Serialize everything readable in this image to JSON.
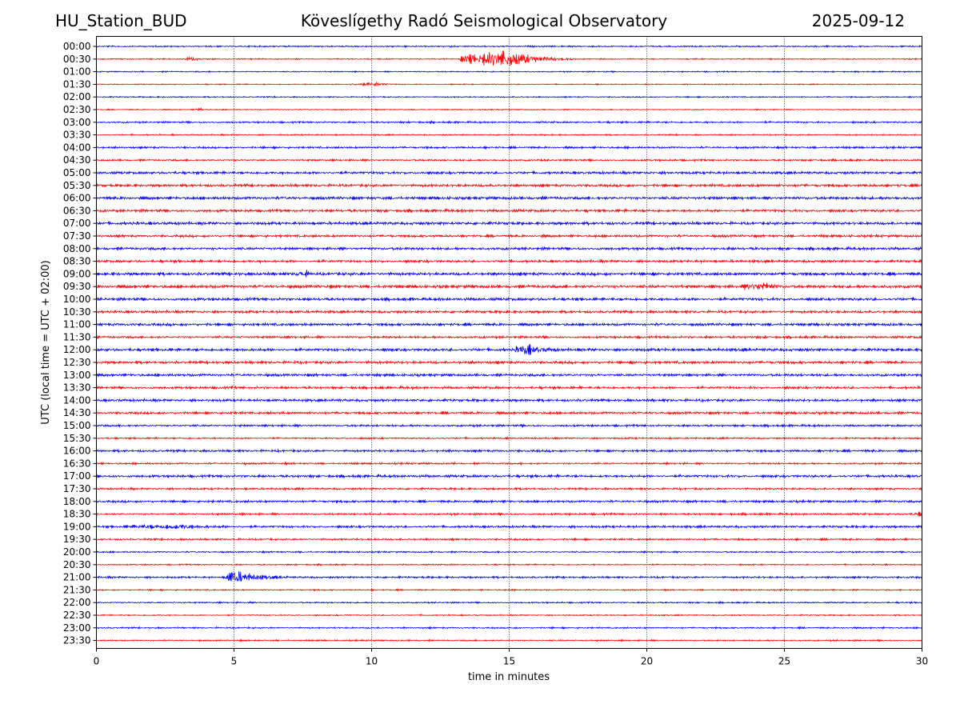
{
  "header": {
    "station": "HU_Station_BUD",
    "observatory": "Köveslígethy Radó Seismological Observatory",
    "date": "2025-09-12"
  },
  "chart_data": {
    "type": "line",
    "title": "Köveslígethy Radó Seismological Observatory",
    "xlabel": "time in minutes",
    "ylabel": "UTC (local time = UTC + 02:00)",
    "xlim": [
      0,
      30
    ],
    "x_ticks": [
      "0",
      "5",
      "10",
      "15",
      "20",
      "25",
      "30"
    ],
    "x_tick_values": [
      0,
      5,
      10,
      15,
      20,
      25,
      30
    ],
    "vertical_grid": "dotted at each x tick",
    "trace_colors": [
      "#0000ff",
      "#ff0000"
    ],
    "rows": [
      "00:00",
      "00:30",
      "01:00",
      "01:30",
      "02:00",
      "02:30",
      "03:00",
      "03:30",
      "04:00",
      "04:30",
      "05:00",
      "05:30",
      "06:00",
      "06:30",
      "07:00",
      "07:30",
      "08:00",
      "08:30",
      "09:00",
      "09:30",
      "10:00",
      "10:30",
      "11:00",
      "11:30",
      "12:00",
      "12:30",
      "13:00",
      "13:30",
      "14:00",
      "14:30",
      "15:00",
      "15:30",
      "16:00",
      "16:30",
      "17:00",
      "17:30",
      "18:00",
      "18:30",
      "19:00",
      "19:30",
      "20:00",
      "20:30",
      "21:00",
      "21:30",
      "22:00",
      "22:30",
      "23:00",
      "23:30"
    ],
    "noise_level": [
      0.22,
      0.18,
      0.18,
      0.16,
      0.18,
      0.15,
      0.26,
      0.2,
      0.3,
      0.28,
      0.4,
      0.42,
      0.45,
      0.42,
      0.45,
      0.38,
      0.42,
      0.4,
      0.48,
      0.5,
      0.45,
      0.4,
      0.42,
      0.35,
      0.45,
      0.42,
      0.4,
      0.38,
      0.4,
      0.38,
      0.32,
      0.25,
      0.35,
      0.28,
      0.4,
      0.3,
      0.35,
      0.3,
      0.35,
      0.28,
      0.22,
      0.2,
      0.3,
      0.2,
      0.22,
      0.18,
      0.22,
      0.22
    ],
    "events": [
      {
        "row": "00:30",
        "start_min": 13.2,
        "end_min": 17.5,
        "peak_min": 15.0,
        "amplitude": 3.0
      },
      {
        "row": "00:30",
        "start_min": 3.2,
        "end_min": 4.0,
        "peak_min": 3.5,
        "amplitude": 0.6
      },
      {
        "row": "01:30",
        "start_min": 9.2,
        "end_min": 11.0,
        "peak_min": 10.2,
        "amplitude": 0.5
      },
      {
        "row": "02:30",
        "start_min": 3.6,
        "end_min": 4.0,
        "peak_min": 3.8,
        "amplitude": 0.6
      },
      {
        "row": "09:00",
        "start_min": 7.2,
        "end_min": 8.0,
        "peak_min": 7.6,
        "amplitude": 0.8
      },
      {
        "row": "09:30",
        "start_min": 23.5,
        "end_min": 25.0,
        "peak_min": 24.3,
        "amplitude": 1.1
      },
      {
        "row": "12:00",
        "start_min": 15.2,
        "end_min": 17.0,
        "peak_min": 15.6,
        "amplitude": 1.4
      },
      {
        "row": "19:00",
        "start_min": 1.0,
        "end_min": 5.5,
        "peak_min": 3.0,
        "amplitude": 0.6
      },
      {
        "row": "21:00",
        "start_min": 4.7,
        "end_min": 7.0,
        "peak_min": 4.95,
        "amplitude": 2.4
      },
      {
        "row": "18:30",
        "start_min": 29.7,
        "end_min": 30.0,
        "peak_min": 29.9,
        "amplitude": 0.6
      }
    ]
  }
}
